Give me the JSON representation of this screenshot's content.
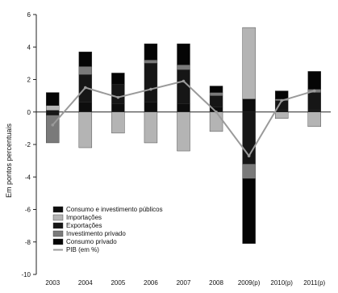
{
  "chart_data": {
    "type": "bar",
    "stacked": true,
    "title": "",
    "xlabel": "",
    "ylabel": "Em pontos percentuais",
    "ylim": [
      -10,
      6
    ],
    "yticks": [
      -10,
      -8,
      -6,
      -4,
      -2,
      0,
      2,
      4,
      6
    ],
    "grid": false,
    "legend_position": "bottom-left",
    "categories": [
      "2003",
      "2004",
      "2005",
      "2006",
      "2007",
      "2008",
      "2009(p)",
      "2010(p)",
      "2011(p)"
    ],
    "series": [
      {
        "name": "Consumo e investimento públicos",
        "color": "#0d0d0d",
        "values": [
          0.1,
          0.6,
          0.5,
          0.6,
          0.5,
          0.3,
          0.8,
          0.1,
          0.1
        ]
      },
      {
        "name": "Importações",
        "color": "#b4b4b4",
        "values": [
          0.3,
          -2.2,
          -1.3,
          -1.9,
          -2.4,
          -1.2,
          4.4,
          -0.4,
          -0.9
        ]
      },
      {
        "name": "Exportações",
        "color": "#161616",
        "values": [
          -0.2,
          1.7,
          1.2,
          2.4,
          2.1,
          0.7,
          -3.2,
          0.6,
          1.1
        ]
      },
      {
        "name": "Investimento privado",
        "color": "#7a7a7a",
        "values": [
          -1.7,
          0.5,
          0.0,
          0.2,
          0.3,
          0.2,
          -0.9,
          0.1,
          0.2
        ]
      },
      {
        "name": "Consumo privado",
        "color": "#050505",
        "values": [
          0.8,
          0.9,
          0.7,
          1.0,
          1.3,
          0.4,
          -4.0,
          0.5,
          1.1
        ]
      }
    ],
    "line_series": {
      "name": "PIB (em %)",
      "color": "#9a9a9a",
      "values": [
        -0.8,
        1.5,
        0.9,
        1.4,
        1.9,
        0.0,
        -2.7,
        0.7,
        1.3
      ]
    }
  }
}
